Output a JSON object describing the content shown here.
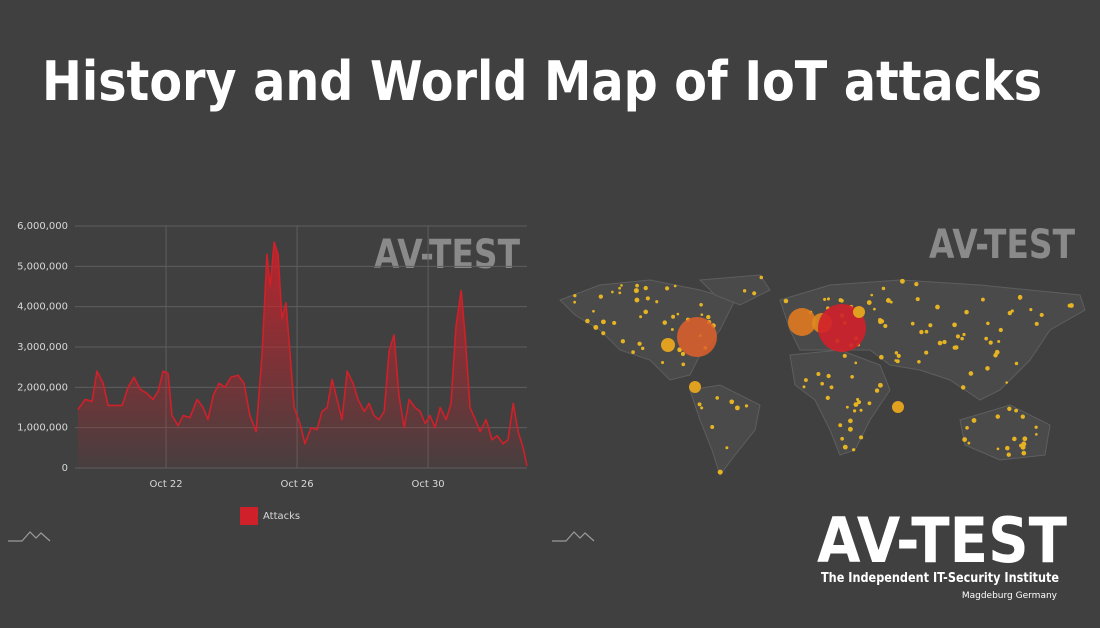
{
  "title": "History and World Map of IoT attacks",
  "watermarks": [
    "AV-TEST",
    "AV-TEST"
  ],
  "chart_data": {
    "type": "line",
    "x": [
      19.31,
      19.53,
      19.74,
      19.89,
      20.08,
      20.23,
      20.44,
      20.66,
      20.84,
      21.02,
      21.21,
      21.42,
      21.6,
      21.76,
      21.91,
      22.06,
      22.18,
      22.37,
      22.52,
      22.73,
      22.95,
      23.13,
      23.28,
      23.44,
      23.62,
      23.8,
      23.98,
      24.2,
      24.38,
      24.56,
      24.75,
      24.93,
      25.08,
      25.18,
      25.3,
      25.42,
      25.54,
      25.66,
      25.79,
      25.91,
      26.09,
      26.24,
      26.43,
      26.61,
      26.76,
      26.92,
      27.07,
      27.22,
      27.37,
      27.53,
      27.71,
      27.86,
      28.05,
      28.2,
      28.35,
      28.5,
      28.66,
      28.81,
      28.96,
      29.11,
      29.27,
      29.42,
      29.6,
      29.76,
      29.91,
      30.06,
      30.21,
      30.37,
      30.55,
      30.7,
      30.85,
      31.01,
      31.13,
      31.28,
      31.44,
      31.59,
      31.77,
      31.95,
      32.11,
      32.29,
      32.44,
      32.6,
      32.75,
      32.9,
      33.02
    ],
    "series": [
      {
        "name": "Attacks",
        "color": "#d0202a",
        "values": [
          1450000,
          1700000,
          1650000,
          2400000,
          2100000,
          1550000,
          1550000,
          1550000,
          2000000,
          2250000,
          1950000,
          1850000,
          1700000,
          1900000,
          2400000,
          2350000,
          1300000,
          1050000,
          1300000,
          1250000,
          1700000,
          1500000,
          1200000,
          1800000,
          2100000,
          2000000,
          2250000,
          2300000,
          2100000,
          1300000,
          900000,
          2800000,
          5300000,
          4500000,
          5600000,
          5300000,
          3700000,
          4100000,
          2800000,
          1500000,
          1100000,
          600000,
          1000000,
          950000,
          1400000,
          1500000,
          2200000,
          1700000,
          1200000,
          2400000,
          2100000,
          1700000,
          1400000,
          1600000,
          1300000,
          1200000,
          1400000,
          2900000,
          3300000,
          1800000,
          1000000,
          1700000,
          1500000,
          1400000,
          1100000,
          1300000,
          1000000,
          1500000,
          1200000,
          1600000,
          3500000,
          4400000,
          3300000,
          1500000,
          1200000,
          900000,
          1200000,
          700000,
          800000,
          600000,
          700000,
          1600000,
          900000,
          500000,
          50000
        ]
      }
    ],
    "xlim": [
      19.22,
      33.02
    ],
    "xticks": [
      {
        "value": 22,
        "label": "Oct 22"
      },
      {
        "value": 26,
        "label": "Oct 26"
      },
      {
        "value": 30,
        "label": "Oct 30"
      }
    ],
    "ylim": [
      0,
      6000000
    ],
    "yticks": [
      0,
      {
        "value": 1000000,
        "label": "1,000,000"
      },
      {
        "value": 2000000,
        "label": "2,000,000"
      },
      {
        "value": 3000000,
        "label": "3,000,000"
      },
      {
        "value": 4000000,
        "label": "4,000,000"
      },
      {
        "value": 5000000,
        "label": "5,000,000"
      },
      {
        "value": 6000000,
        "label": "6,000,000"
      }
    ],
    "grid": true,
    "legend": "bottom"
  },
  "logo": {
    "name": "AV-TEST",
    "tagline": "The Independent IT-Security Institute",
    "location": "Magdeburg Germany"
  }
}
